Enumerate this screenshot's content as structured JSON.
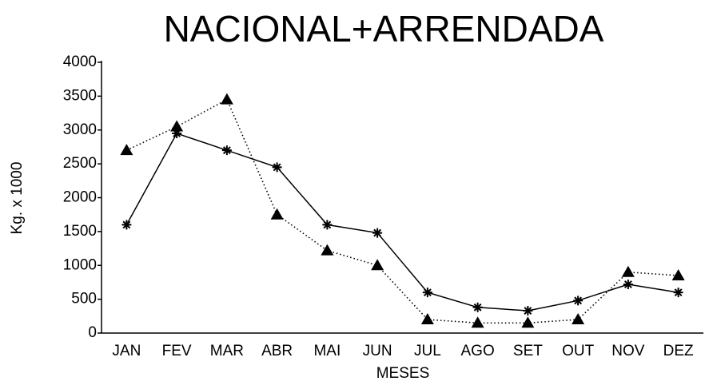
{
  "chart_data": {
    "type": "line",
    "title": "NACIONAL+ARRENDADA",
    "xlabel": "MESES",
    "ylabel": "Kg. x 1000",
    "categories": [
      "JAN",
      "FEV",
      "MAR",
      "ABR",
      "MAI",
      "JUN",
      "JUL",
      "AGO",
      "SET",
      "OUT",
      "NOV",
      "DEZ"
    ],
    "series": [
      {
        "color": "#000000",
        "linestyle": "solid",
        "marker": "asterisk",
        "values": [
          1600,
          2950,
          2700,
          2450,
          1600,
          1480,
          600,
          380,
          330,
          480,
          720,
          600
        ]
      },
      {
        "color": "#000000",
        "linestyle": "dotted",
        "marker": "triangle",
        "values": [
          2700,
          3050,
          3450,
          1750,
          1220,
          1000,
          200,
          150,
          150,
          200,
          900,
          850
        ]
      }
    ],
    "ylim": [
      0,
      4000
    ],
    "yticks": [
      0,
      500,
      1000,
      1500,
      2000,
      2500,
      3000,
      3500,
      4000
    ],
    "grid": false
  }
}
